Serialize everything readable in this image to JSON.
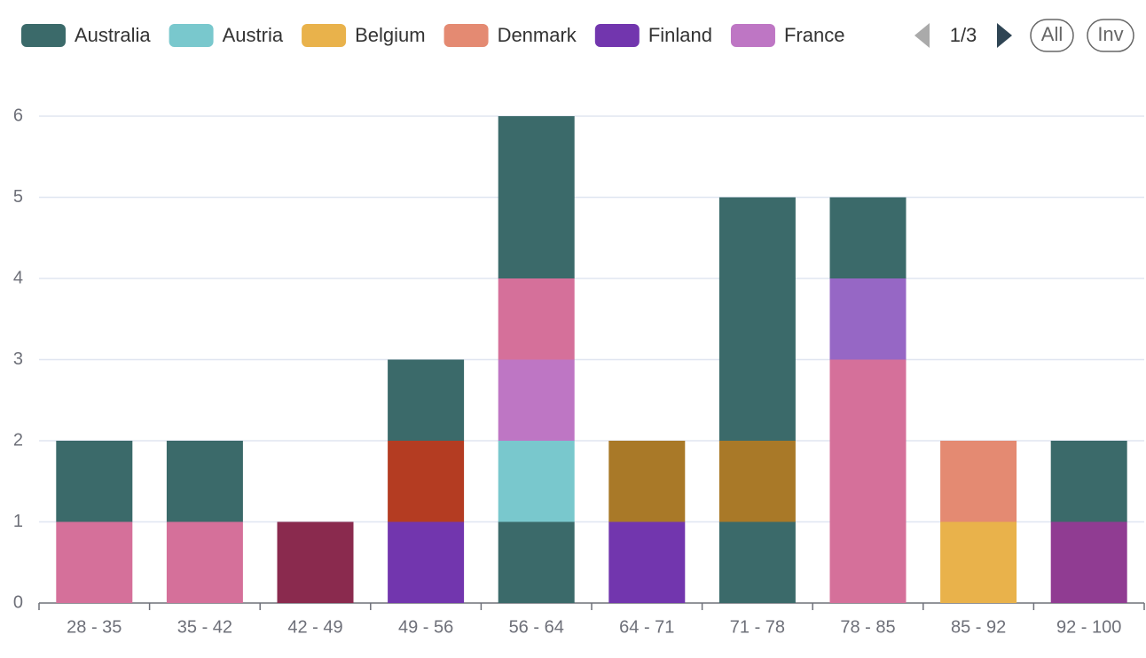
{
  "chart_data": {
    "type": "bar",
    "stacked": true,
    "categories": [
      "28 - 35",
      "35 - 42",
      "42 - 49",
      "49 - 56",
      "56 - 64",
      "64 - 71",
      "71 - 78",
      "78 - 85",
      "85 - 92",
      "92 - 100"
    ],
    "series": [
      {
        "name": "Australia",
        "color": "#3b6a6a",
        "values": [
          null,
          null,
          null,
          null,
          1,
          null,
          1,
          null,
          null,
          null
        ]
      },
      {
        "name": "Austria",
        "color": "#79c8cd",
        "values": [
          null,
          null,
          null,
          null,
          1,
          null,
          null,
          null,
          null,
          null
        ]
      },
      {
        "name": "Belgium",
        "color": "#e9b24b",
        "values": [
          null,
          null,
          null,
          null,
          null,
          null,
          null,
          null,
          1,
          null
        ]
      },
      {
        "name": "Denmark",
        "color": "#e48a72",
        "values": [
          null,
          null,
          null,
          null,
          null,
          null,
          null,
          null,
          1,
          null
        ]
      },
      {
        "name": "Finland",
        "color": "#7236ae",
        "values": [
          null,
          null,
          null,
          1,
          null,
          1,
          null,
          null,
          null,
          null
        ]
      },
      {
        "name": "France",
        "color": "#be76c4",
        "values": [
          null,
          null,
          null,
          null,
          1,
          null,
          null,
          null,
          null,
          null
        ]
      },
      {
        "color": "#d5709a",
        "values": [
          1,
          1,
          null,
          null,
          1,
          null,
          null,
          3,
          null,
          null
        ]
      },
      {
        "color": "#8a2a4e",
        "values": [
          null,
          null,
          1,
          null,
          null,
          null,
          null,
          null,
          null,
          null
        ]
      },
      {
        "color": "#b43c22",
        "values": [
          null,
          null,
          null,
          1,
          null,
          null,
          null,
          null,
          null,
          null
        ]
      },
      {
        "color": "#a97928",
        "values": [
          null,
          null,
          null,
          null,
          null,
          1,
          1,
          null,
          null,
          null
        ]
      },
      {
        "color": "#9667c5",
        "values": [
          null,
          null,
          null,
          null,
          null,
          null,
          null,
          1,
          null,
          null
        ]
      },
      {
        "color": "#903c92",
        "values": [
          null,
          null,
          null,
          null,
          null,
          null,
          null,
          null,
          null,
          1
        ]
      },
      {
        "color": "#3b6a6a",
        "values": [
          1,
          1,
          null,
          1,
          2,
          null,
          3,
          1,
          null,
          1
        ]
      }
    ],
    "ylim": [
      0,
      6
    ],
    "yticks": [
      0,
      1,
      2,
      3,
      4,
      5,
      6
    ],
    "grid": true,
    "legend": {
      "page": "1/3",
      "buttons": [
        "All",
        "Inv"
      ]
    }
  }
}
